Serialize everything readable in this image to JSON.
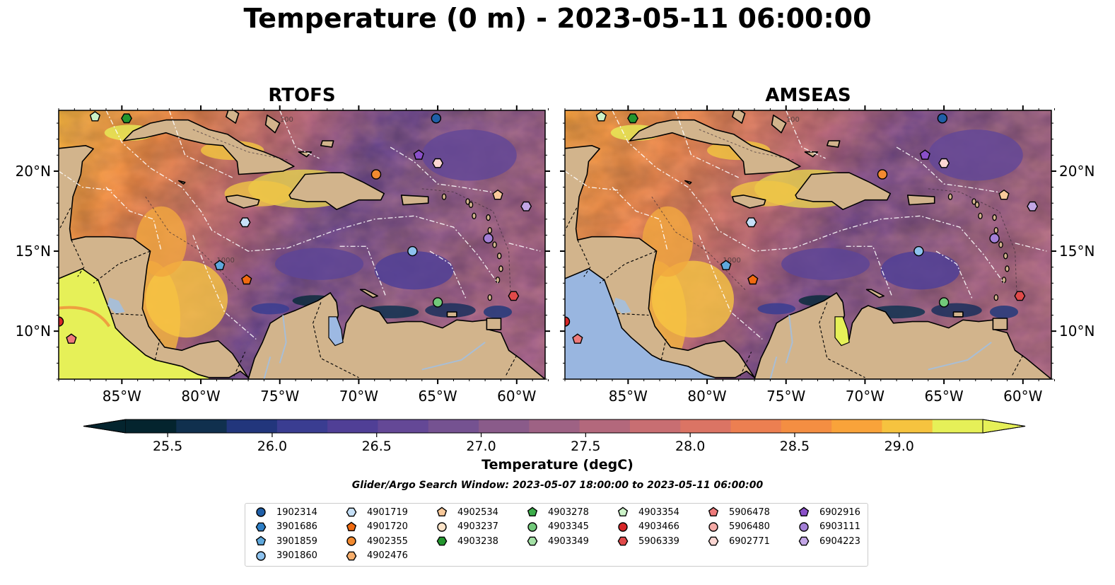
{
  "title": "Temperature (0 m) - 2023-05-11 06:00:00",
  "panels": [
    {
      "title": "RTOFS",
      "variant": "rtofs"
    },
    {
      "title": "AMSEAS",
      "variant": "amseas"
    }
  ],
  "axes": {
    "lon_ticks": [
      "85°W",
      "80°W",
      "75°W",
      "70°W",
      "65°W",
      "60°W"
    ],
    "lat_ticks": [
      "20°N",
      "15°N",
      "10°N"
    ],
    "lon_values": [
      -85,
      -80,
      -75,
      -70,
      -65,
      -60
    ],
    "lat_values": [
      20,
      15,
      10
    ],
    "extent": {
      "lon": [
        -89,
        -58.2
      ],
      "lat": [
        7,
        23.8
      ]
    }
  },
  "colorbar": {
    "label": "Temperature (degC)",
    "ticks": [
      "25.5",
      "26.0",
      "26.5",
      "27.0",
      "27.5",
      "28.0",
      "28.5",
      "29.0"
    ],
    "tick_values": [
      25.5,
      26.0,
      26.5,
      27.0,
      27.5,
      28.0,
      28.5,
      29.0
    ],
    "range": [
      25.3,
      29.4
    ],
    "colors": [
      "#04242e",
      "#10304e",
      "#22367c",
      "#3a3d91",
      "#503f96",
      "#644896",
      "#755291",
      "#8a5b8a",
      "#9e6284",
      "#b3687c",
      "#c86e72",
      "#db7464",
      "#ec7f51",
      "#f48e42",
      "#f9a33a",
      "#f6c33f",
      "#e6f058"
    ],
    "extend": "both"
  },
  "search_window": "Glider/Argo Search Window: 2023-05-07 18:00:00 to 2023-05-11 06:00:00",
  "contour_labels": [
    "100",
    "1000"
  ],
  "colors": {
    "land": "#d2b48c",
    "pacific_fill": "#99b6e0",
    "lake": "#a8bed6"
  },
  "legend": [
    {
      "id": "1902314",
      "marker": "circle",
      "color": "#1f5fa8"
    },
    {
      "id": "3901686",
      "marker": "hexagon",
      "color": "#2e7fc6"
    },
    {
      "id": "3901859",
      "marker": "pentagon",
      "color": "#5fa8dc"
    },
    {
      "id": "3901860",
      "marker": "circle",
      "color": "#8dc2ee"
    },
    {
      "id": "4901719",
      "marker": "hexagon",
      "color": "#c6e0f7"
    },
    {
      "id": "4901720",
      "marker": "pentagon",
      "color": "#f06a10"
    },
    {
      "id": "4902355",
      "marker": "circle",
      "color": "#f28a30"
    },
    {
      "id": "4902476",
      "marker": "hexagon",
      "color": "#f7ae6c"
    },
    {
      "id": "4902534",
      "marker": "pentagon",
      "color": "#f9c99a"
    },
    {
      "id": "4903237",
      "marker": "circle",
      "color": "#fce3c8"
    },
    {
      "id": "4903238",
      "marker": "hexagon",
      "color": "#23962e"
    },
    {
      "id": "4903278",
      "marker": "pentagon",
      "color": "#3cad4a"
    },
    {
      "id": "4903345",
      "marker": "circle",
      "color": "#72c97a"
    },
    {
      "id": "4903349",
      "marker": "hexagon",
      "color": "#a4e1a6"
    },
    {
      "id": "4903354",
      "marker": "pentagon",
      "color": "#ccf3c8"
    },
    {
      "id": "4903466",
      "marker": "circle",
      "color": "#d62728"
    },
    {
      "id": "5906339",
      "marker": "hexagon",
      "color": "#e04a4a"
    },
    {
      "id": "5906478",
      "marker": "pentagon",
      "color": "#ee7a7a"
    },
    {
      "id": "5906480",
      "marker": "circle",
      "color": "#f5aaa6"
    },
    {
      "id": "6902771",
      "marker": "hexagon",
      "color": "#fbd6d2"
    },
    {
      "id": "6902916",
      "marker": "pentagon",
      "color": "#8a4fc8"
    },
    {
      "id": "6903111",
      "marker": "circle",
      "color": "#a37fd6"
    },
    {
      "id": "6904223",
      "marker": "hexagon",
      "color": "#c3a6e6"
    }
  ],
  "platform_positions": [
    {
      "id": "1902314",
      "lon": -65.1,
      "lat": 23.3
    },
    {
      "id": "4903238",
      "lon": -84.7,
      "lat": 23.3
    },
    {
      "id": "4903354",
      "lon": -86.7,
      "lat": 23.4
    },
    {
      "id": "6902916",
      "lon": -66.2,
      "lat": 21.0
    },
    {
      "id": "6902771",
      "lon": -65.0,
      "lat": 20.5
    },
    {
      "id": "4902355",
      "lon": -68.9,
      "lat": 19.8
    },
    {
      "id": "4902534",
      "lon": -61.2,
      "lat": 18.5
    },
    {
      "id": "6904223",
      "lon": -59.4,
      "lat": 17.8
    },
    {
      "id": "4901719",
      "lon": -77.2,
      "lat": 16.8
    },
    {
      "id": "6903111",
      "lon": -61.8,
      "lat": 15.8
    },
    {
      "id": "3901860",
      "lon": -66.6,
      "lat": 15.0
    },
    {
      "id": "3901859",
      "lon": -78.8,
      "lat": 14.1
    },
    {
      "id": "4901720",
      "lon": -77.1,
      "lat": 13.2
    },
    {
      "id": "5906339",
      "lon": -60.2,
      "lat": 12.2
    },
    {
      "id": "4903345",
      "lon": -65.0,
      "lat": 11.8
    },
    {
      "id": "4903466",
      "lon": -89.0,
      "lat": 10.6
    },
    {
      "id": "5906478",
      "lon": -88.2,
      "lat": 9.5
    }
  ]
}
